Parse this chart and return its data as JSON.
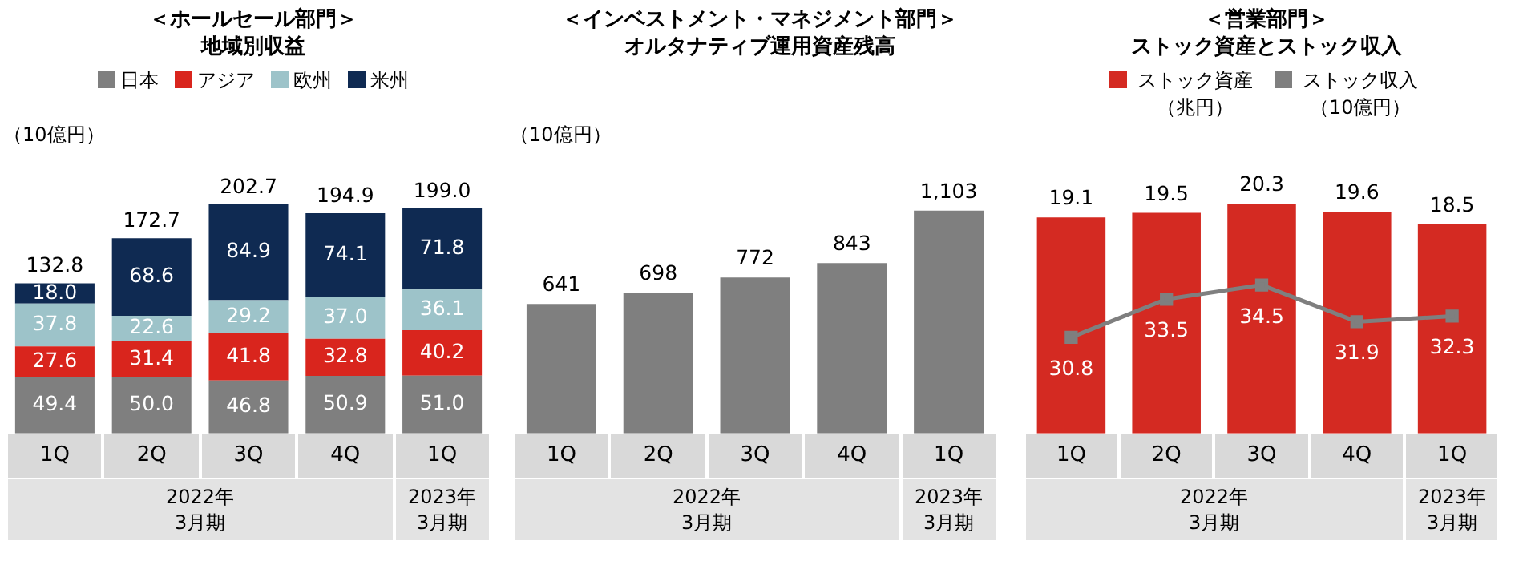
{
  "chart_data": [
    {
      "type": "bar",
      "title": "＜ホールセール部門＞",
      "subtitle": "地域別収益",
      "ylabel": "（10億円）",
      "categories": [
        "1Q",
        "2Q",
        "3Q",
        "4Q",
        "1Q"
      ],
      "stacked": true,
      "legend": "top",
      "tick_labels": "x",
      "series": [
        {
          "name": "日本",
          "color": "#7f7f7f",
          "values": [
            49.4,
            50.0,
            46.8,
            50.9,
            51.0
          ],
          "value_labels": [
            "49.4",
            "50.0",
            "46.8",
            "50.9",
            "51.0"
          ]
        },
        {
          "name": "アジア",
          "color": "#d9251d",
          "values": [
            27.6,
            31.4,
            41.8,
            32.8,
            40.2
          ],
          "value_labels": [
            "27.6",
            "31.4",
            "41.8",
            "32.8",
            "40.2"
          ]
        },
        {
          "name": "欧州",
          "color": "#9dc3c9",
          "values": [
            37.8,
            22.6,
            29.2,
            37.0,
            36.1
          ],
          "value_labels": [
            "37.8",
            "22.6",
            "29.2",
            "37.0",
            "36.1"
          ]
        },
        {
          "name": "米州",
          "color": "#0f2a52",
          "values": [
            18.0,
            68.6,
            84.9,
            74.1,
            71.8
          ],
          "value_labels": [
            "18.0",
            "68.6",
            "84.9",
            "74.1",
            "71.8"
          ]
        }
      ],
      "totals": [
        "132.8",
        "172.7",
        "202.7",
        "194.9",
        "199.0"
      ],
      "annotations": [
        "2022年\n3月期",
        "2023年\n3月期"
      ]
    },
    {
      "type": "bar",
      "title": "＜インベストメント・マネジメント部門＞",
      "subtitle": "オルタナティブ運用資産残高",
      "ylabel": "（10億円）",
      "categories": [
        "1Q",
        "2Q",
        "3Q",
        "4Q",
        "1Q"
      ],
      "tick_labels": "x",
      "series": [
        {
          "color": "#7f7f7f",
          "values": [
            641,
            698,
            772,
            843,
            1103
          ],
          "value_labels": [
            "641",
            "698",
            "772",
            "843",
            "1,103"
          ]
        }
      ],
      "annotations": [
        "2022年\n3月期",
        "2023年\n3月期"
      ]
    },
    {
      "type": "bar",
      "title": "＜営業部門＞",
      "subtitle": "ストック資産とストック収入",
      "categories": [
        "1Q",
        "2Q",
        "3Q",
        "4Q",
        "1Q"
      ],
      "tick_labels": "x",
      "legend": "top",
      "data_labels": true,
      "marker": "square",
      "series": [
        {
          "name": "ストック資産（兆円）",
          "color": "#d42a22",
          "values": [
            19.1,
            19.5,
            20.3,
            19.6,
            18.5
          ]
        },
        {
          "name": "ストック収入（10億円）",
          "type": "line",
          "axis": "y2",
          "color": "#7f7f7f",
          "values": [
            30.8,
            33.5,
            34.5,
            31.9,
            32.3
          ]
        }
      ],
      "annotations": [
        "2022年\n3月期",
        "2023年\n3月期"
      ]
    }
  ]
}
